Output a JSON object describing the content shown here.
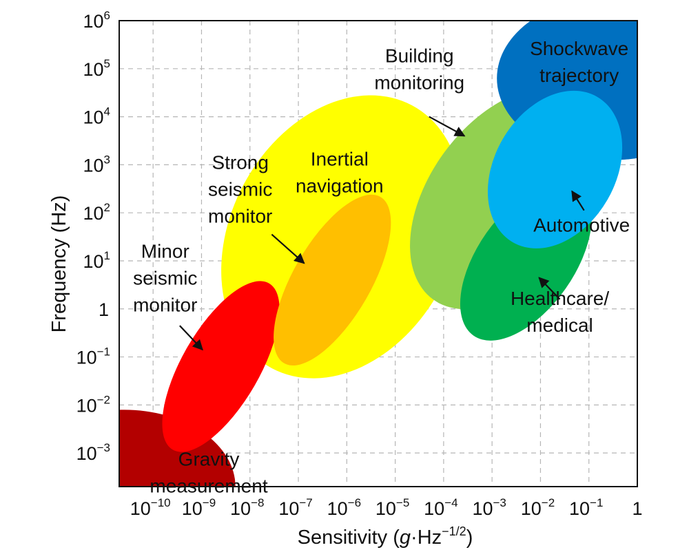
{
  "chart_data": {
    "type": "scatter",
    "title": "",
    "xlabel": {
      "before": "Sensitivity (",
      "italic": "g",
      "middle": "·Hz",
      "sup": "−1/2",
      "after": ")"
    },
    "ylabel": "Frequency (Hz)",
    "x_scale": "log",
    "y_scale": "log",
    "xlim_log10": [
      -10.7,
      0
    ],
    "ylim_log10": [
      -3.7,
      6
    ],
    "grid": true,
    "x_ticks": [
      {
        "exp": -10,
        "base": "10",
        "sup": "−10"
      },
      {
        "exp": -9,
        "base": "10",
        "sup": "−9"
      },
      {
        "exp": -8,
        "base": "10",
        "sup": "−8"
      },
      {
        "exp": -7,
        "base": "10",
        "sup": "−7"
      },
      {
        "exp": -6,
        "base": "10",
        "sup": "−6"
      },
      {
        "exp": -5,
        "base": "10",
        "sup": "−5"
      },
      {
        "exp": -4,
        "base": "10",
        "sup": "−4"
      },
      {
        "exp": -3,
        "base": "10",
        "sup": "−3"
      },
      {
        "exp": -2,
        "base": "10",
        "sup": "−2"
      },
      {
        "exp": -1,
        "base": "10",
        "sup": "−1"
      },
      {
        "exp": 0,
        "base": "1",
        "sup": ""
      }
    ],
    "y_ticks": [
      {
        "exp": 6,
        "base": "10",
        "sup": "6"
      },
      {
        "exp": 5,
        "base": "10",
        "sup": "5"
      },
      {
        "exp": 4,
        "base": "10",
        "sup": "4"
      },
      {
        "exp": 3,
        "base": "10",
        "sup": "3"
      },
      {
        "exp": 2,
        "base": "10",
        "sup": "2"
      },
      {
        "exp": 1,
        "base": "10",
        "sup": "1"
      },
      {
        "exp": 0,
        "base": "1",
        "sup": ""
      },
      {
        "exp": -1,
        "base": "10",
        "sup": "−1"
      },
      {
        "exp": -2,
        "base": "10",
        "sup": "−2"
      },
      {
        "exp": -3,
        "base": "10",
        "sup": "−3"
      }
    ],
    "regions": [
      {
        "key": "gravity",
        "label_lines": [
          "Gravity",
          "measurement"
        ],
        "color": "#b30000",
        "center_log10": [
          -10.6,
          -3.7
        ],
        "radii_log10": [
          2.3,
          1.6
        ],
        "rotation": 0,
        "label_at_log10": [
          -8.85,
          -3.4
        ],
        "arrow": null
      },
      {
        "key": "strong_seismic",
        "label_lines": [
          "Strong",
          "seismic",
          "monitor"
        ],
        "color": "#ffff00",
        "center_log10": [
          -6.1,
          1.5
        ],
        "radii_log10": [
          2.3,
          3.1
        ],
        "rotation": 28,
        "label_at_log10": [
          -8.2,
          2.5
        ],
        "arrow": {
          "from_log10": [
            -7.55,
            1.55
          ],
          "to_log10": [
            -6.88,
            0.95
          ]
        }
      },
      {
        "key": "minor_seismic",
        "label_lines": [
          "Minor",
          "seismic",
          "monitor"
        ],
        "color": "#ff0000",
        "center_log10": [
          -8.6,
          -1.2
        ],
        "radii_log10": [
          0.8,
          2.0
        ],
        "rotation": 30,
        "label_at_log10": [
          -9.75,
          0.65
        ],
        "arrow": {
          "from_log10": [
            -9.45,
            -0.35
          ],
          "to_log10": [
            -8.98,
            -0.85
          ]
        }
      },
      {
        "key": "inertial",
        "label_lines": [
          "Inertial",
          "navigation"
        ],
        "color": "#ffbf00",
        "center_log10": [
          -6.3,
          0.6
        ],
        "radii_log10": [
          0.8,
          2.0
        ],
        "rotation": 30,
        "label_at_log10": [
          -6.15,
          2.85
        ],
        "arrow": null
      },
      {
        "key": "building",
        "label_lines": [
          "Building",
          "monitoring"
        ],
        "color": "#92d050",
        "center_log10": [
          -2.7,
          2.3
        ],
        "radii_log10": [
          1.6,
          2.6
        ],
        "rotation": 36,
        "label_at_log10": [
          -4.5,
          5.0
        ],
        "arrow": {
          "from_log10": [
            -4.3,
            4.0
          ],
          "to_log10": [
            -3.57,
            3.6
          ]
        }
      },
      {
        "key": "shockwave",
        "label_lines": [
          "Shockwave",
          "trajectory"
        ],
        "color": "#0070c0",
        "center_log10": [
          -0.5,
          4.8
        ],
        "radii_log10": [
          2.4,
          1.7
        ],
        "rotation": 0,
        "label_at_log10": [
          -1.2,
          5.15
        ],
        "arrow": null
      },
      {
        "key": "healthcare",
        "label_lines": [
          "Healthcare/",
          "medical"
        ],
        "color": "#00b050",
        "center_log10": [
          -2.3,
          1.0
        ],
        "radii_log10": [
          1.0,
          1.9
        ],
        "rotation": 35,
        "label_at_log10": [
          -1.6,
          -0.05
        ],
        "arrow": {
          "from_log10": [
            -1.6,
            0.2
          ],
          "to_log10": [
            -2.03,
            0.65
          ]
        }
      },
      {
        "key": "automotive",
        "label_lines": [
          "Automotive"
        ],
        "color": "#00b0f0",
        "center_log10": [
          -1.7,
          2.9
        ],
        "radii_log10": [
          1.25,
          1.75
        ],
        "rotation": 30,
        "label_at_log10": [
          -1.15,
          1.75
        ],
        "arrow": {
          "from_log10": [
            -1.1,
            2.05
          ],
          "to_log10": [
            -1.35,
            2.45
          ]
        }
      }
    ]
  }
}
